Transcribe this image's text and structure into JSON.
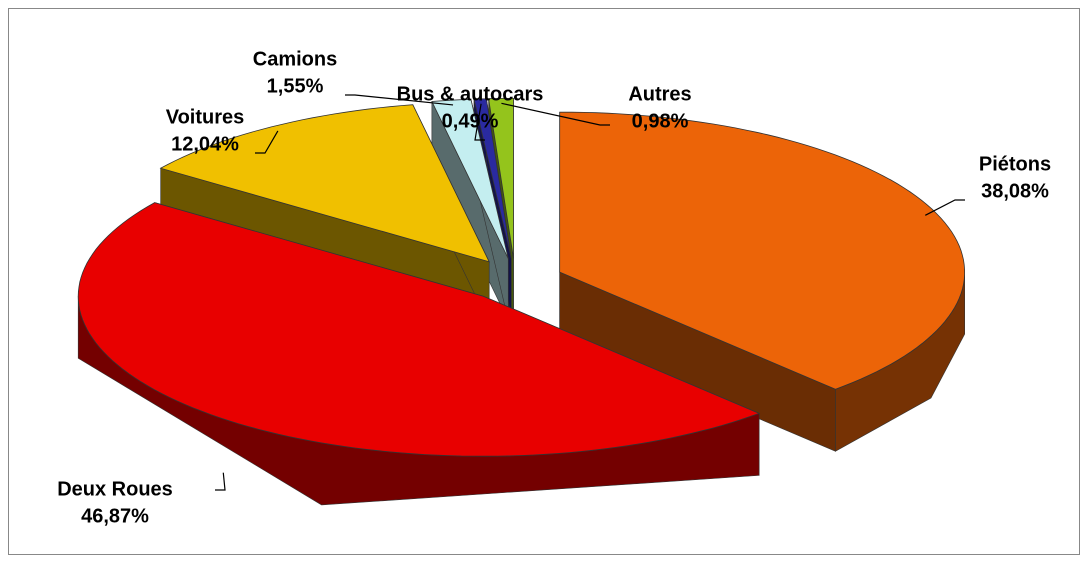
{
  "chart_data": {
    "type": "pie3d",
    "categories": [
      "Piétons",
      "Deux Roues",
      "Voitures",
      "Camions",
      "Bus & autocars",
      "Autres"
    ],
    "values": [
      38.08,
      46.87,
      12.04,
      1.55,
      0.49,
      0.98
    ],
    "value_labels": [
      "38,08%",
      "46,87%",
      "12,04%",
      "1,55%",
      "0,49%",
      "0,98%"
    ],
    "colors": [
      "#ec6408",
      "#e80000",
      "#f0c000",
      "#c4eef0",
      "#2a2aa0",
      "#94c41c"
    ]
  }
}
